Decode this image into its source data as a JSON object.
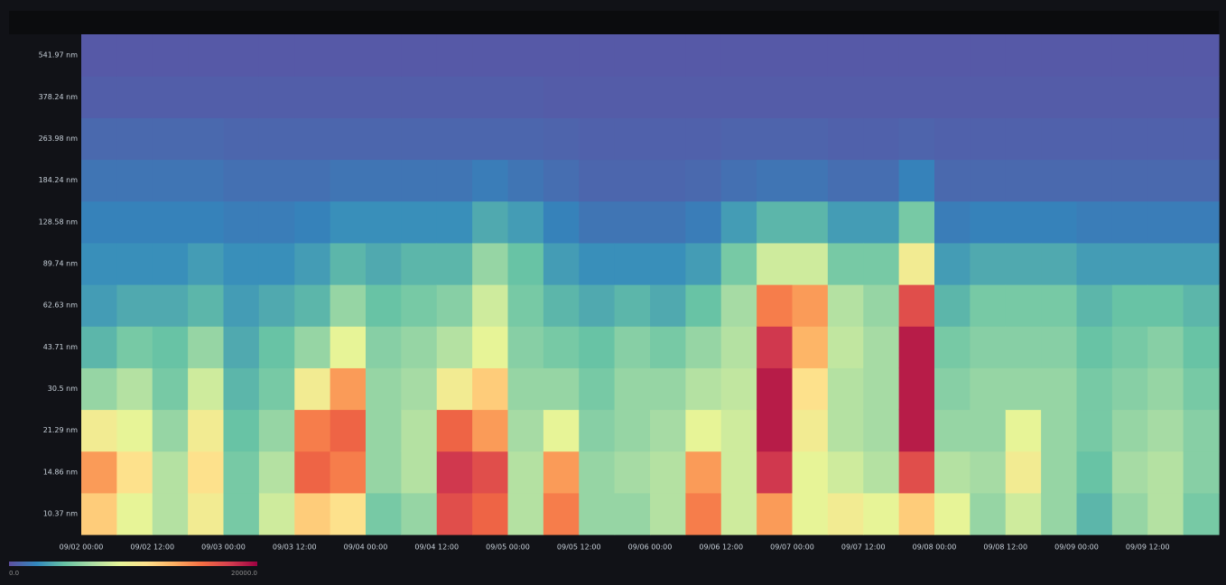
{
  "chart_data": {
    "type": "heatmap",
    "categories": [
      "09/02 00:00",
      "09/02 12:00",
      "09/03 00:00",
      "09/03 12:00",
      "09/04 00:00",
      "09/04 12:00",
      "09/05 00:00",
      "09/05 12:00",
      "09/06 00:00",
      "09/06 12:00",
      "09/07 00:00",
      "09/07 12:00",
      "09/08 00:00",
      "09/08 12:00",
      "09/09 00:00",
      "09/09 12:00"
    ],
    "y_labels": [
      "10.37 nm",
      "14.86 nm",
      "21.29 nm",
      "30.5 nm",
      "43.71 nm",
      "62.63 nm",
      "89.74 nm",
      "128.58 nm",
      "184.24 nm",
      "263.98 nm",
      "378.24 nm",
      "541.97 nm"
    ],
    "values": [
      [
        12000,
        14000,
        10000,
        6000,
        4000,
        3000,
        2500,
        2000,
        1500,
        1000,
        600,
        400
      ],
      [
        9000,
        11000,
        9000,
        7000,
        5000,
        3500,
        2500,
        2000,
        1500,
        1000,
        600,
        400
      ],
      [
        7000,
        7000,
        6000,
        5000,
        4500,
        3500,
        2500,
        2000,
        1500,
        1000,
        600,
        400
      ],
      [
        10000,
        11000,
        10000,
        8000,
        6000,
        4000,
        3000,
        2000,
        1500,
        1000,
        600,
        400
      ],
      [
        5000,
        5000,
        4500,
        4000,
        3500,
        3000,
        2500,
        1800,
        1300,
        900,
        600,
        400
      ],
      [
        8000,
        7000,
        6000,
        5000,
        4500,
        3500,
        2500,
        1800,
        1300,
        900,
        600,
        400
      ],
      [
        12000,
        16000,
        15000,
        10000,
        6000,
        4000,
        3000,
        2000,
        1300,
        900,
        600,
        400
      ],
      [
        11000,
        15000,
        16000,
        14000,
        9000,
        6000,
        4000,
        2500,
        1500,
        900,
        600,
        400
      ],
      [
        5000,
        6000,
        6000,
        6000,
        5500,
        4500,
        3500,
        2500,
        1500,
        900,
        600,
        400
      ],
      [
        6000,
        7000,
        7000,
        6500,
        6000,
        5000,
        4000,
        2500,
        1500,
        900,
        600,
        400
      ],
      [
        17000,
        18000,
        16000,
        10000,
        7000,
        5500,
        4000,
        2500,
        1500,
        900,
        600,
        400
      ],
      [
        16000,
        17000,
        14000,
        12000,
        9000,
        8000,
        6000,
        3500,
        1800,
        900,
        600,
        400
      ],
      [
        7000,
        7000,
        6500,
        6000,
        5500,
        5000,
        4500,
        3000,
        1500,
        900,
        600,
        400
      ],
      [
        15000,
        14000,
        9000,
        6000,
        5000,
        4000,
        3000,
        2000,
        1200,
        800,
        500,
        400
      ],
      [
        6000,
        6000,
        5500,
        5000,
        4500,
        3500,
        2500,
        1500,
        900,
        700,
        500,
        400
      ],
      [
        6000,
        6500,
        6000,
        6000,
        5500,
        4000,
        2500,
        1500,
        900,
        700,
        500,
        400
      ],
      [
        7000,
        7000,
        6500,
        6000,
        5000,
        3500,
        2500,
        1500,
        900,
        700,
        500,
        400
      ],
      [
        15000,
        14000,
        9000,
        7000,
        6000,
        4500,
        3000,
        1800,
        1000,
        700,
        500,
        400
      ],
      [
        8000,
        8000,
        8000,
        7500,
        7000,
        6500,
        5000,
        3000,
        1300,
        800,
        500,
        400
      ],
      [
        14000,
        18000,
        19000,
        19000,
        18000,
        15000,
        8000,
        4000,
        1500,
        800,
        500,
        400
      ],
      [
        9000,
        9000,
        10000,
        11000,
        13000,
        14000,
        8000,
        4000,
        1500,
        800,
        500,
        400
      ],
      [
        10000,
        8000,
        7000,
        7000,
        7500,
        7000,
        5000,
        3000,
        1200,
        700,
        500,
        400
      ],
      [
        9000,
        7000,
        6500,
        6500,
        6500,
        6000,
        5000,
        3000,
        1200,
        700,
        500,
        400
      ],
      [
        12000,
        17000,
        19000,
        19000,
        19000,
        17000,
        10000,
        5000,
        2000,
        800,
        500,
        400
      ],
      [
        9000,
        7000,
        6000,
        5500,
        5000,
        4000,
        3000,
        1800,
        1000,
        700,
        500,
        400
      ],
      [
        6000,
        6500,
        6000,
        6000,
        5500,
        5000,
        3500,
        2000,
        1000,
        700,
        500,
        400
      ],
      [
        8000,
        10000,
        9000,
        6000,
        5500,
        5000,
        3500,
        2000,
        1000,
        700,
        500,
        400
      ],
      [
        6000,
        6000,
        6000,
        6000,
        5500,
        5000,
        3500,
        2000,
        1000,
        700,
        500,
        400
      ],
      [
        4000,
        4500,
        5000,
        5000,
        4500,
        4000,
        3000,
        1800,
        1000,
        700,
        500,
        400
      ],
      [
        6000,
        6500,
        6000,
        5500,
        5000,
        4500,
        3000,
        1800,
        1000,
        700,
        500,
        400
      ],
      [
        7000,
        7000,
        6500,
        6000,
        5500,
        4500,
        3000,
        1800,
        1000,
        700,
        500,
        400
      ],
      [
        5000,
        5500,
        5500,
        5000,
        4500,
        4000,
        3000,
        1800,
        1000,
        700,
        500,
        400
      ]
    ],
    "colorlim": [
      0,
      20000
    ],
    "color_ticks": [
      {
        "value": 0,
        "label": "0.0"
      },
      {
        "value": 20000,
        "label": "20000.0"
      }
    ],
    "colors": [
      "#5e4fa2",
      "#3288bd",
      "#66c2a5",
      "#abdda4",
      "#e6f598",
      "#fee08b",
      "#fdae61",
      "#f46d43",
      "#d53e4f",
      "#9e0142"
    ]
  }
}
